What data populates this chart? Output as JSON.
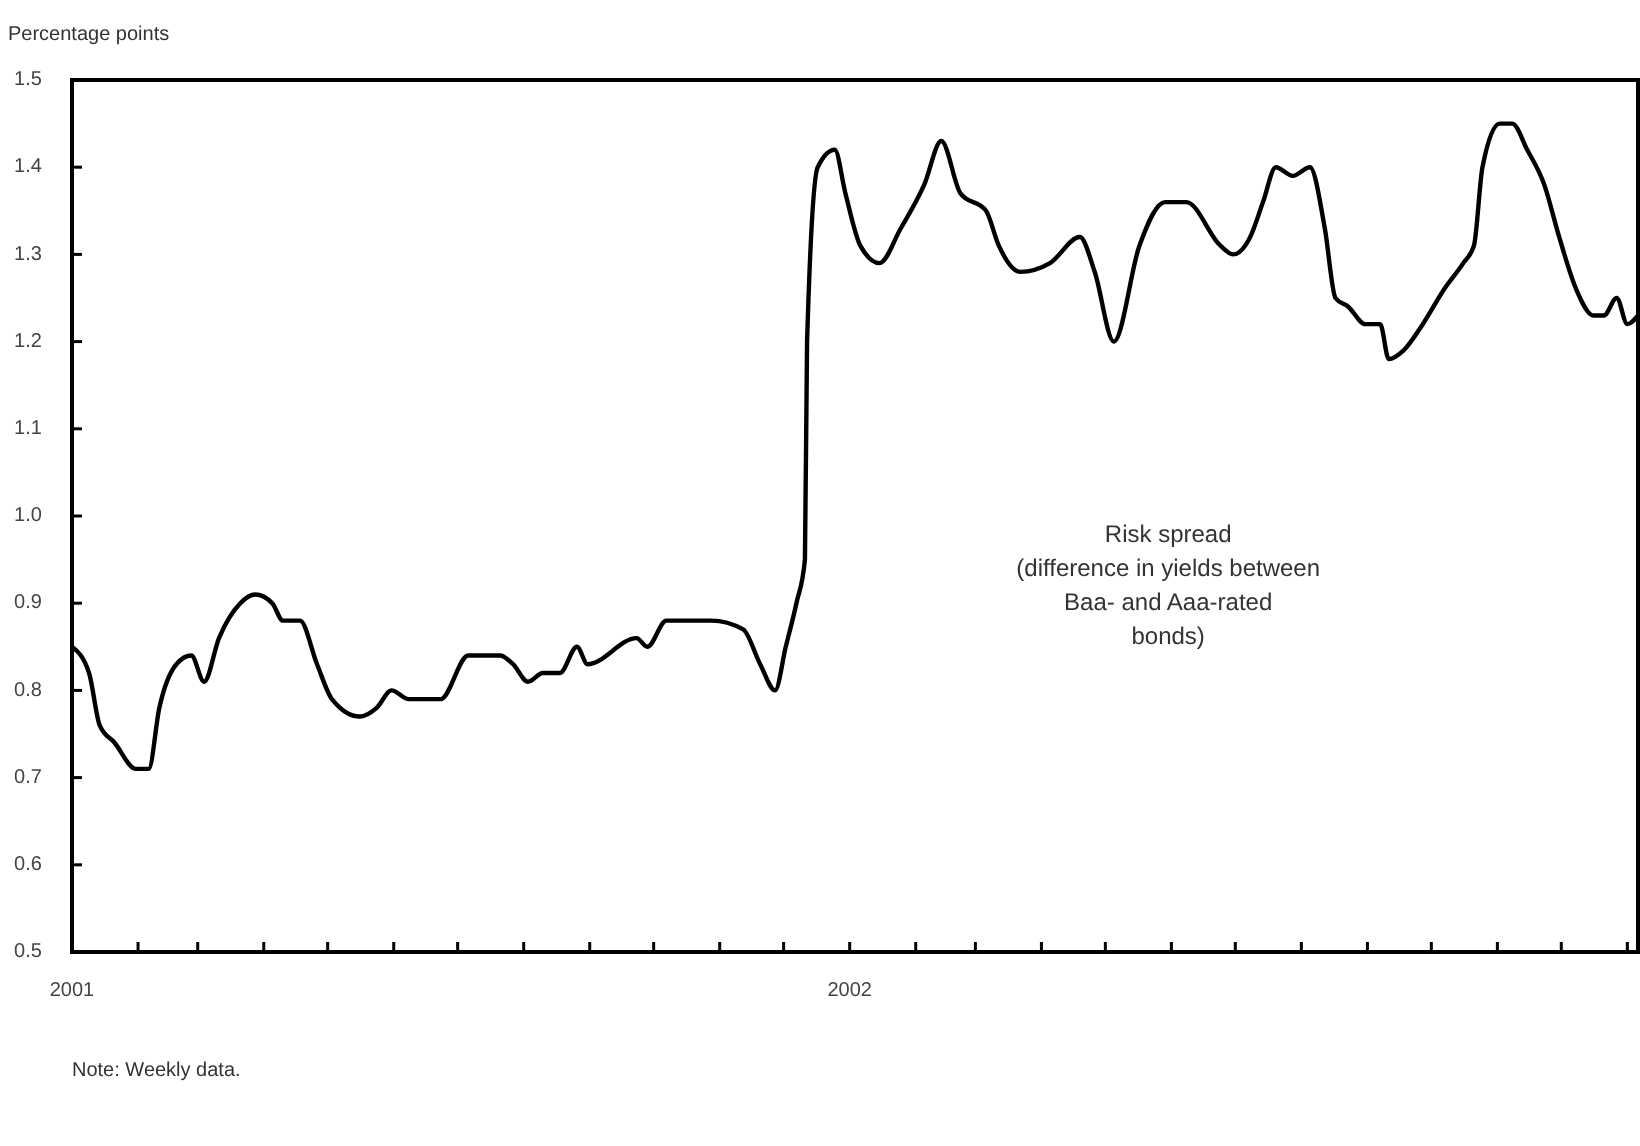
{
  "chart_data": {
    "type": "line",
    "ylabel": "Percentage points",
    "x": [
      "2001-01-01",
      "2001-01-09",
      "2001-01-14",
      "2001-01-21",
      "2001-01-31",
      "2001-02-06",
      "2001-02-11",
      "2001-02-19",
      "2001-02-26",
      "2001-03-04",
      "2001-03-11",
      "2001-03-21",
      "2001-03-28",
      "2001-04-05",
      "2001-04-10",
      "2001-04-18",
      "2001-04-26",
      "2001-05-03",
      "2001-05-16",
      "2001-05-24",
      "2001-05-31",
      "2001-06-08",
      "2001-06-23",
      "2001-07-06",
      "2001-07-21",
      "2001-07-27",
      "2001-08-03",
      "2001-08-10",
      "2001-08-18",
      "2001-08-26",
      "2001-08-31",
      "2001-09-23",
      "2001-09-28",
      "2001-10-07",
      "2001-10-28",
      "2001-11-12",
      "2001-11-20",
      "2001-11-27",
      "2001-12-02",
      "2001-12-07",
      "2001-12-11",
      "2001-12-12",
      "2001-12-17",
      "2001-12-25",
      "2001-12-30",
      "2002-01-06",
      "2002-01-15",
      "2002-01-25",
      "2002-02-05",
      "2002-02-13",
      "2002-02-22",
      "2002-03-06",
      "2002-03-12",
      "2002-03-22",
      "2002-04-05",
      "2002-04-19",
      "2002-04-26",
      "2002-05-05",
      "2002-05-17",
      "2002-05-29",
      "2002-06-08",
      "2002-06-24",
      "2002-06-30",
      "2002-07-08",
      "2002-07-14",
      "2002-07-20",
      "2002-07-28",
      "2002-08-05",
      "2002-08-12",
      "2002-08-17",
      "2002-08-23",
      "2002-08-31",
      "2002-09-07",
      "2002-09-11",
      "2002-09-18",
      "2002-09-27",
      "2002-10-07",
      "2002-10-16",
      "2002-10-21",
      "2002-10-25",
      "2002-11-02",
      "2002-11-08",
      "2002-11-15",
      "2002-11-23",
      "2002-11-30",
      "2002-12-08",
      "2002-12-16",
      "2002-12-21",
      "2002-12-27",
      "2003-01-01",
      "2003-01-06"
    ],
    "series": [
      {
        "name": "Risk spread\n(difference in yields between\nBaa- and Aaa-rated\nbonds)",
        "color": "#000000",
        "values": [
          0.85,
          0.82,
          0.76,
          0.74,
          0.71,
          0.71,
          0.78,
          0.83,
          0.84,
          0.81,
          0.86,
          0.9,
          0.91,
          0.9,
          0.88,
          0.88,
          0.83,
          0.79,
          0.77,
          0.78,
          0.8,
          0.79,
          0.79,
          0.84,
          0.84,
          0.83,
          0.81,
          0.82,
          0.82,
          0.85,
          0.83,
          0.86,
          0.85,
          0.88,
          0.88,
          0.87,
          0.83,
          0.8,
          0.85,
          0.9,
          0.95,
          1.2,
          1.4,
          1.42,
          1.37,
          1.31,
          1.29,
          1.33,
          1.38,
          1.43,
          1.37,
          1.35,
          1.31,
          1.28,
          1.29,
          1.32,
          1.28,
          1.2,
          1.31,
          1.36,
          1.36,
          1.31,
          1.3,
          1.32,
          1.36,
          1.4,
          1.39,
          1.4,
          1.33,
          1.25,
          1.24,
          1.22,
          1.22,
          1.18,
          1.19,
          1.22,
          1.26,
          1.29,
          1.31,
          1.4,
          1.45,
          1.45,
          1.42,
          1.38,
          1.32,
          1.26,
          1.23,
          1.23,
          1.25,
          1.22,
          1.23
        ]
      }
    ],
    "xlim": [
      "2001-01-01",
      "2003-01-06"
    ],
    "xticks": [
      {
        "value": "2001-01-01",
        "label": "2001"
      },
      {
        "value": "2001-02-01",
        "label": null
      },
      {
        "value": "2001-03-01",
        "label": null
      },
      {
        "value": "2001-04-01",
        "label": null
      },
      {
        "value": "2001-05-01",
        "label": null
      },
      {
        "value": "2001-06-01",
        "label": null
      },
      {
        "value": "2001-07-01",
        "label": null
      },
      {
        "value": "2001-08-01",
        "label": null
      },
      {
        "value": "2001-09-01",
        "label": null
      },
      {
        "value": "2001-10-01",
        "label": null
      },
      {
        "value": "2001-11-01",
        "label": null
      },
      {
        "value": "2001-12-01",
        "label": null
      },
      {
        "value": "2002-01-01",
        "label": "2002"
      },
      {
        "value": "2002-02-01",
        "label": null
      },
      {
        "value": "2002-03-01",
        "label": null
      },
      {
        "value": "2002-04-01",
        "label": null
      },
      {
        "value": "2002-05-01",
        "label": null
      },
      {
        "value": "2002-06-01",
        "label": null
      },
      {
        "value": "2002-07-01",
        "label": null
      },
      {
        "value": "2002-08-01",
        "label": null
      },
      {
        "value": "2002-09-01",
        "label": null
      },
      {
        "value": "2002-10-01",
        "label": null
      },
      {
        "value": "2002-11-01",
        "label": null
      },
      {
        "value": "2002-12-01",
        "label": null
      },
      {
        "value": "2003-01-01",
        "label": null
      }
    ],
    "ylim": [
      0.5,
      1.5
    ],
    "yticks": [
      {
        "value": 0.5,
        "label": "0.5"
      },
      {
        "value": 0.6,
        "label": "0.6"
      },
      {
        "value": 0.7,
        "label": "0.7"
      },
      {
        "value": 0.8,
        "label": "0.8"
      },
      {
        "value": 0.9,
        "label": "0.9"
      },
      {
        "value": 1.0,
        "label": "1.0"
      },
      {
        "value": 1.1,
        "label": "1.1"
      },
      {
        "value": 1.2,
        "label": "1.2"
      },
      {
        "value": 1.3,
        "label": "1.3"
      },
      {
        "value": 1.4,
        "label": "1.4"
      },
      {
        "value": 1.5,
        "label": "1.5"
      }
    ],
    "grid": false,
    "line_style": "solid",
    "annotations": [
      "Note: Weekly data."
    ]
  }
}
